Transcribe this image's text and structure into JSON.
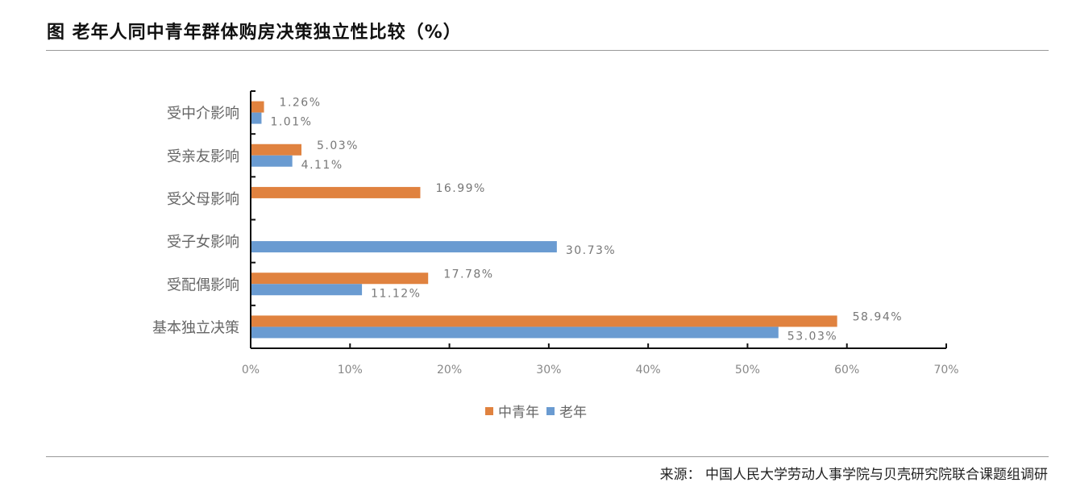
{
  "title": "图  老年人同中青年群体购房决策独立性比较（%）",
  "source": "来源：  中国人民大学劳动人事学院与贝壳研究院联合课题组调研",
  "chart_data": {
    "type": "bar",
    "orientation": "horizontal",
    "categories": [
      "受中介影响",
      "受亲友影响",
      "受父母影响",
      "受子女影响",
      "受配偶影响",
      "基本独立决策"
    ],
    "series": [
      {
        "name": "中青年",
        "color": "#E0823F",
        "values": [
          1.26,
          5.03,
          16.99,
          null,
          17.78,
          58.94
        ],
        "labels": [
          "1.26%",
          "5.03%",
          "16.99%",
          "",
          "17.78%",
          "58.94%"
        ]
      },
      {
        "name": "老年",
        "color": "#6A9BD1",
        "values": [
          1.01,
          4.11,
          null,
          30.73,
          11.12,
          53.03
        ],
        "labels": [
          "1.01%",
          "4.11%",
          "",
          "30.73%",
          "11.12%",
          "53.03%"
        ]
      }
    ],
    "xlim": [
      0,
      70
    ],
    "xticks": [
      "0%",
      "10%",
      "20%",
      "30%",
      "40%",
      "50%",
      "60%",
      "70%"
    ],
    "grid": false,
    "legend": "bottom"
  }
}
